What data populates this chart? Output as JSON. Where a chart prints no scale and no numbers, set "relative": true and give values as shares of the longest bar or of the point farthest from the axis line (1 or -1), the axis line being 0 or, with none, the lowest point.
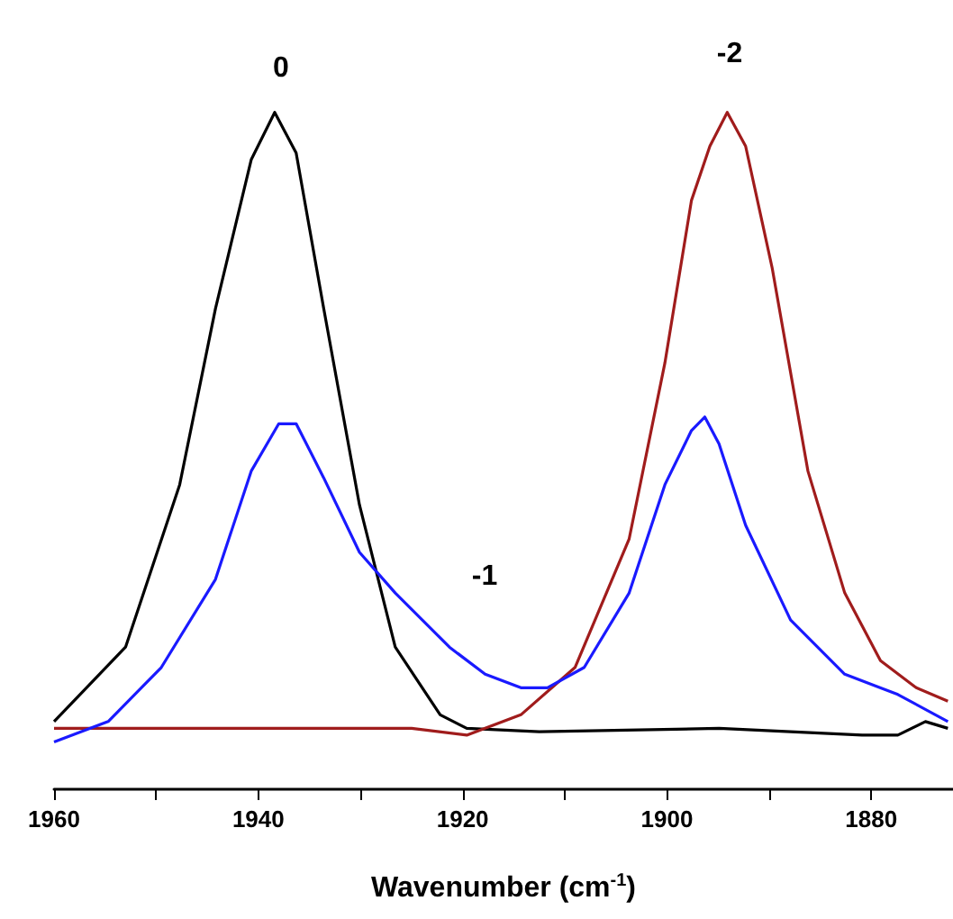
{
  "chart_data": {
    "type": "line",
    "relative": true,
    "xlabel": "Wavenumber (cm$^{-1}$)",
    "xlim": [
      1960,
      1872
    ],
    "xticks": [
      1960,
      {
        "value": 1950,
        "label": null
      },
      1940,
      {
        "value": 1930,
        "label": null
      },
      1920,
      {
        "value": 1910,
        "label": null
      },
      1900,
      {
        "value": 1890,
        "label": null
      },
      1880
    ],
    "tick_labels": "x",
    "grid": false,
    "marker": "none",
    "line_style": "solid",
    "annotations": [
      "0",
      "-1",
      "-2"
    ],
    "series": [
      {
        "color": "#000000",
        "x": [
          1960,
          1953,
          1947.7,
          1944.2,
          1940.7,
          1938.4,
          1936.3,
          1933.6,
          1930.1,
          1926.6,
          1922.2,
          1919.6,
          1912.5,
          1894.9,
          1880.9,
          1877.4,
          1874.7,
          1872.5
        ],
        "values": [
          0.1,
          0.21,
          0.45,
          0.71,
          0.93,
          1.0,
          0.94,
          0.71,
          0.42,
          0.21,
          0.11,
          0.09,
          0.085,
          0.09,
          0.08,
          0.08,
          0.1,
          0.09
        ]
      },
      {
        "color": "#a01c1c",
        "x": [
          1960,
          1940,
          1925,
          1919.6,
          1914.3,
          1909.0,
          1903.7,
          1900.2,
          1897.6,
          1895.8,
          1894.1,
          1892.3,
          1889.7,
          1886.2,
          1882.6,
          1879.1,
          1875.6,
          1872.5
        ],
        "values": [
          0.09,
          0.09,
          0.09,
          0.08,
          0.11,
          0.18,
          0.37,
          0.63,
          0.87,
          0.95,
          1.0,
          0.95,
          0.77,
          0.47,
          0.29,
          0.19,
          0.15,
          0.13
        ]
      },
      {
        "color": "#1a1aff",
        "x": [
          1960,
          1954.7,
          1949.5,
          1944.2,
          1940.7,
          1938.0,
          1936.3,
          1933.6,
          1930.1,
          1926.6,
          1921.3,
          1917.8,
          1914.3,
          1911.7,
          1908.1,
          1903.7,
          1900.2,
          1897.6,
          1896.3,
          1894.9,
          1892.3,
          1887.9,
          1882.6,
          1877.4,
          1872.5
        ],
        "values": [
          0.07,
          0.1,
          0.18,
          0.31,
          0.47,
          0.54,
          0.54,
          0.46,
          0.35,
          0.29,
          0.21,
          0.17,
          0.15,
          0.15,
          0.18,
          0.29,
          0.45,
          0.53,
          0.55,
          0.51,
          0.39,
          0.25,
          0.17,
          0.14,
          0.1
        ]
      }
    ]
  }
}
